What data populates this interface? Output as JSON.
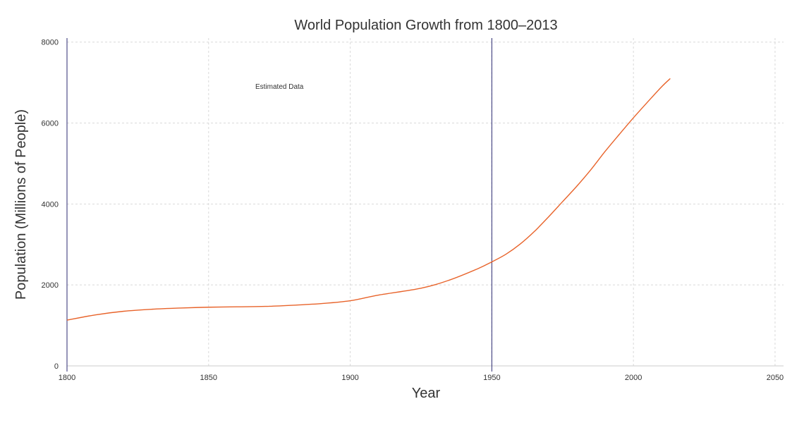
{
  "chart_data": {
    "type": "line",
    "title": "World Population Growth from 1800–2013",
    "xlabel": "Year",
    "ylabel": "Population (Millions of People)",
    "xlim": [
      1800,
      2053
    ],
    "ylim": [
      0,
      8100
    ],
    "x_ticks": [
      1800,
      1850,
      1900,
      1950,
      2000,
      2050
    ],
    "y_ticks": [
      0,
      2000,
      4000,
      6000,
      8000
    ],
    "grid": true,
    "vertical_lines": [
      {
        "x": 1800,
        "color": "#2b2a72"
      },
      {
        "x": 1950,
        "color": "#2b2a72"
      }
    ],
    "annotations": [
      {
        "text": "Estimated Data",
        "x": 1875,
        "y": 6850
      }
    ],
    "series": [
      {
        "color": "#e8632a",
        "x": [
          1800,
          1810,
          1820,
          1830,
          1840,
          1850,
          1860,
          1870,
          1880,
          1890,
          1900,
          1910,
          1925,
          1935,
          1945,
          1950,
          1955,
          1960,
          1965,
          1970,
          1975,
          1980,
          1985,
          1990,
          1995,
          2000,
          2005,
          2010,
          2013
        ],
        "y": [
          1130,
          1260,
          1350,
          1400,
          1430,
          1450,
          1460,
          1470,
          1500,
          1540,
          1610,
          1750,
          1920,
          2120,
          2400,
          2570,
          2760,
          3010,
          3320,
          3680,
          4060,
          4440,
          4850,
          5300,
          5720,
          6130,
          6520,
          6900,
          7100
        ]
      }
    ]
  }
}
